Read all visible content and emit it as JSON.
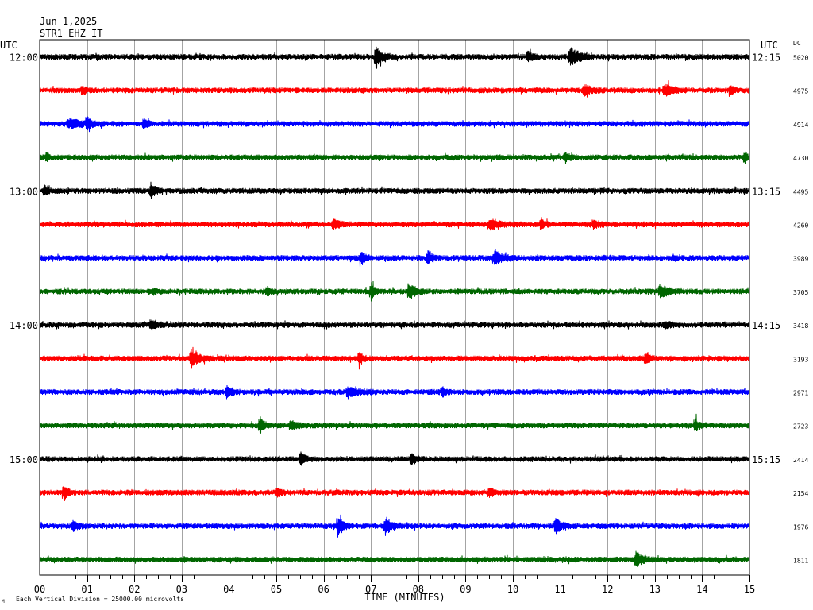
{
  "header": {
    "date": "Jun 1,2025",
    "station": "STR1 EHZ IT"
  },
  "left_axis_label": "UTC",
  "right_axis_label": "UTC",
  "dc_label": "DC",
  "footer": {
    "scale_note": "Each Vertical Division = 25000.00 microvolts",
    "scale_mark": "M"
  },
  "colors": {
    "black": "#000000",
    "red": "#ff0000",
    "blue": "#0000ff",
    "green": "#006600",
    "grid": "#000000"
  },
  "chart_data": {
    "type": "line",
    "title": "Jun 1,2025 STR1 EHZ IT",
    "xlabel": "TIME (MINUTES)",
    "ylabel": "UTC",
    "xlim": [
      0,
      15
    ],
    "x_ticks": [
      "00",
      "01",
      "02",
      "03",
      "04",
      "05",
      "06",
      "07",
      "08",
      "09",
      "10",
      "11",
      "12",
      "13",
      "14",
      "15"
    ],
    "minor_ticks_per_minute": 4,
    "grid": true,
    "time_labels_left": [
      "12:00",
      "",
      "",
      "",
      "13:00",
      "",
      "",
      "",
      "14:00",
      "",
      "",
      "",
      "15:00",
      "",
      "",
      ""
    ],
    "time_labels_right": [
      "12:15",
      "",
      "",
      "",
      "13:15",
      "",
      "",
      "",
      "14:15",
      "",
      "",
      "",
      "15:15",
      "",
      "",
      ""
    ],
    "dc_values": [
      "5020",
      "4975",
      "4914",
      "4730",
      "4495",
      "4260",
      "3989",
      "3705",
      "3418",
      "3193",
      "2971",
      "2723",
      "2414",
      "2154",
      "1976",
      "1811"
    ],
    "trace_colors": [
      "black",
      "red",
      "blue",
      "green",
      "black",
      "red",
      "blue",
      "green",
      "black",
      "red",
      "blue",
      "green",
      "black",
      "red",
      "blue",
      "green"
    ],
    "noise_amplitude": [
      3,
      3,
      3,
      3,
      3,
      3,
      3,
      3,
      3,
      3,
      3,
      3,
      3,
      3,
      3,
      3
    ],
    "events": [
      [
        {
          "t": 7.1,
          "amp": 12,
          "dur": 0.35
        },
        {
          "t": 10.3,
          "amp": 6,
          "dur": 0.3
        },
        {
          "t": 11.2,
          "amp": 11,
          "dur": 0.5
        }
      ],
      [
        {
          "t": 0.9,
          "amp": 5,
          "dur": 0.2
        },
        {
          "t": 11.5,
          "amp": 7,
          "dur": 0.4
        },
        {
          "t": 13.2,
          "amp": 7,
          "dur": 0.5
        },
        {
          "t": 14.6,
          "amp": 5,
          "dur": 0.2
        }
      ],
      [
        {
          "t": 0.6,
          "amp": 6,
          "dur": 0.8
        },
        {
          "t": 1.0,
          "amp": 8,
          "dur": 0.2
        },
        {
          "t": 2.2,
          "amp": 6,
          "dur": 0.2
        }
      ],
      [
        {
          "t": 0.15,
          "amp": 6,
          "dur": 0.1
        },
        {
          "t": 11.1,
          "amp": 6,
          "dur": 0.3
        },
        {
          "t": 14.9,
          "amp": 9,
          "dur": 0.1
        }
      ],
      [
        {
          "t": 0.1,
          "amp": 6,
          "dur": 0.2
        },
        {
          "t": 2.35,
          "amp": 9,
          "dur": 0.25
        }
      ],
      [
        {
          "t": 6.2,
          "amp": 6,
          "dur": 0.4
        },
        {
          "t": 9.5,
          "amp": 6,
          "dur": 0.6
        },
        {
          "t": 10.6,
          "amp": 6,
          "dur": 0.2
        },
        {
          "t": 11.7,
          "amp": 5,
          "dur": 0.3
        }
      ],
      [
        {
          "t": 6.8,
          "amp": 8,
          "dur": 0.25
        },
        {
          "t": 8.2,
          "amp": 11,
          "dur": 0.2
        },
        {
          "t": 9.6,
          "amp": 8,
          "dur": 0.5
        }
      ],
      [
        {
          "t": 2.4,
          "amp": 4,
          "dur": 0.2
        },
        {
          "t": 4.8,
          "amp": 5,
          "dur": 0.2
        },
        {
          "t": 7.0,
          "amp": 11,
          "dur": 0.2
        },
        {
          "t": 7.8,
          "amp": 9,
          "dur": 0.4
        },
        {
          "t": 13.1,
          "amp": 7,
          "dur": 0.5
        }
      ],
      [
        {
          "t": 2.35,
          "amp": 7,
          "dur": 0.3
        },
        {
          "t": 13.2,
          "amp": 4,
          "dur": 0.4
        }
      ],
      [
        {
          "t": 3.2,
          "amp": 10,
          "dur": 0.5
        },
        {
          "t": 6.75,
          "amp": 9,
          "dur": 0.2
        },
        {
          "t": 12.8,
          "amp": 8,
          "dur": 0.2
        }
      ],
      [
        {
          "t": 3.95,
          "amp": 8,
          "dur": 0.3
        },
        {
          "t": 6.5,
          "amp": 6,
          "dur": 0.6
        },
        {
          "t": 8.5,
          "amp": 6,
          "dur": 0.2
        }
      ],
      [
        {
          "t": 4.65,
          "amp": 10,
          "dur": 0.25
        },
        {
          "t": 5.3,
          "amp": 6,
          "dur": 0.3
        },
        {
          "t": 13.85,
          "amp": 8,
          "dur": 0.2
        }
      ],
      [
        {
          "t": 5.5,
          "amp": 7,
          "dur": 0.3
        },
        {
          "t": 7.85,
          "amp": 7,
          "dur": 0.3
        }
      ],
      [
        {
          "t": 0.5,
          "amp": 11,
          "dur": 0.2
        },
        {
          "t": 5.0,
          "amp": 5,
          "dur": 0.3
        },
        {
          "t": 9.5,
          "amp": 5,
          "dur": 0.3
        }
      ],
      [
        {
          "t": 0.7,
          "amp": 6,
          "dur": 0.3
        },
        {
          "t": 6.3,
          "amp": 12,
          "dur": 0.3
        },
        {
          "t": 7.3,
          "amp": 11,
          "dur": 0.35
        },
        {
          "t": 10.9,
          "amp": 8,
          "dur": 0.4
        }
      ],
      [
        {
          "t": 12.6,
          "amp": 9,
          "dur": 0.4
        }
      ]
    ]
  }
}
